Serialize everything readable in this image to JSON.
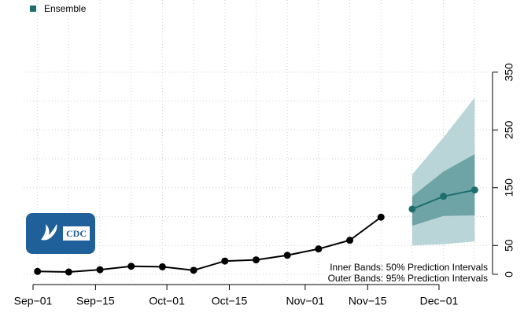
{
  "chart_data": {
    "type": "line",
    "legend": "top-left",
    "series": [
      {
        "color": "#000000",
        "x": [
          "Sep-02",
          "Sep-09",
          "Sep-16",
          "Sep-23",
          "Sep-30",
          "Oct-07",
          "Oct-14",
          "Oct-21",
          "Oct-28",
          "Nov-04",
          "Nov-11",
          "Nov-18"
        ],
        "values": [
          5,
          4,
          8,
          14,
          13,
          7,
          23,
          25,
          33,
          44,
          59,
          99
        ]
      },
      {
        "name": "Ensemble",
        "color": "#1f6e6e",
        "x": [
          "Nov-25",
          "Dec-02",
          "Dec-09"
        ],
        "values": [
          113,
          135,
          146
        ],
        "inner_band": {
          "color": "#6fa4a6",
          "lower": [
            84,
            101,
            102
          ],
          "upper": [
            135,
            178,
            208
          ]
        },
        "outer_band": {
          "color": "#bad5d7",
          "lower": [
            50,
            52,
            57
          ],
          "upper": [
            173,
            237,
            306
          ]
        }
      }
    ],
    "xticks": [
      "Sep−01",
      "Sep−15",
      "Oct−01",
      "Oct−15",
      "Nov−01",
      "Nov−15",
      "Dec−01"
    ],
    "ylim": [
      -15,
      475
    ],
    "yticks": [
      0,
      50,
      150,
      250,
      350
    ],
    "grid_yticks": [
      100,
      200,
      300
    ],
    "grid": true,
    "annotations": [
      "Inner Bands: 50% Prediction Intervals",
      "Outer Bands: 95% Prediction Intervals"
    ],
    "logo_text": "CDC"
  }
}
